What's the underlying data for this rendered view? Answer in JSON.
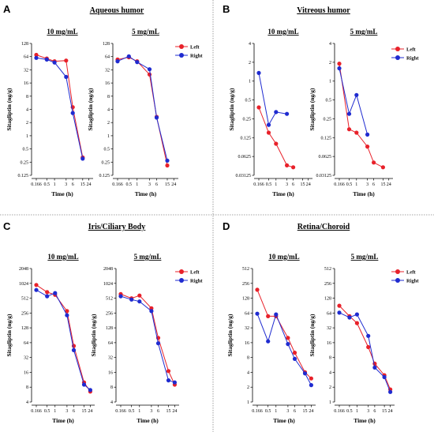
{
  "colors": {
    "left": "#e8212a",
    "right": "#1f2bd0"
  },
  "legend": {
    "left": "Left",
    "right": "Right"
  },
  "x_ticks": [
    "0.166",
    "0.5",
    "1",
    "3",
    "6",
    "15",
    "24"
  ],
  "x_title": "Time (h)",
  "y_title": "Sitagliptin (ng/g)",
  "panels": [
    {
      "letter": "A",
      "title": "Aqueous humor",
      "y_ticks": [
        "0.125",
        "0.25",
        "0.5",
        "1",
        "2",
        "4",
        "8",
        "16",
        "32",
        "64",
        "128"
      ]
    },
    {
      "letter": "B",
      "title": "Vitreous humor",
      "y_ticks": [
        "0.03125",
        "0.0625",
        "0.125",
        "0.25",
        "0.5",
        "1",
        "2",
        "4"
      ]
    },
    {
      "letter": "C",
      "title": "Iris/Ciliary Body",
      "y_ticks": [
        "4",
        "8",
        "16",
        "32",
        "64",
        "128",
        "256",
        "512",
        "1024",
        "2048"
      ]
    },
    {
      "letter": "D",
      "title": "Retina/Choroid",
      "y_ticks": [
        "1",
        "2",
        "4",
        "8",
        "16",
        "32",
        "64",
        "128",
        "256",
        "512"
      ]
    }
  ],
  "chart_data": [
    {
      "type": "line",
      "panel": "A",
      "subtitle": "10 mg/mL",
      "xlabel": "Time (h)",
      "ylabel": "Sitagliptin (ng/g)",
      "x": [
        0.166,
        0.5,
        1,
        3,
        6,
        15,
        24
      ],
      "x_scale": "categorical",
      "y_scale": "log2",
      "ylim": [
        0.125,
        128
      ],
      "series": [
        {
          "name": "Left",
          "values": [
            70,
            58,
            50,
            52,
            4.5,
            0.32
          ],
          "x": [
            0.166,
            0.5,
            1,
            3,
            6,
            15
          ]
        },
        {
          "name": "Right",
          "values": [
            60,
            55,
            47,
            22,
            3.3,
            0.3
          ],
          "x": [
            0.166,
            0.5,
            1,
            3,
            6,
            15
          ]
        }
      ]
    },
    {
      "type": "line",
      "panel": "A",
      "subtitle": "5 mg/mL",
      "xlabel": "Time (h)",
      "ylabel": "Sitagliptin (ng/g)",
      "x": [
        0.166,
        0.5,
        1,
        3,
        6,
        15,
        24
      ],
      "x_scale": "categorical",
      "y_scale": "log2",
      "ylim": [
        0.125,
        128
      ],
      "series": [
        {
          "name": "Left",
          "values": [
            55,
            62,
            50,
            25,
            2.7,
            0.21
          ],
          "x": [
            0.166,
            0.5,
            1,
            3,
            6,
            15
          ]
        },
        {
          "name": "Right",
          "values": [
            50,
            65,
            48,
            33,
            2.6,
            0.27
          ],
          "x": [
            0.166,
            0.5,
            1,
            3,
            6,
            15
          ]
        }
      ]
    },
    {
      "type": "line",
      "panel": "B",
      "subtitle": "10 mg/mL",
      "xlabel": "Time (h)",
      "ylabel": "Sitagliptin (ng/g)",
      "x": [
        0.166,
        0.5,
        1,
        3,
        6,
        15,
        24
      ],
      "x_scale": "categorical",
      "y_scale": "log2",
      "ylim": [
        0.03125,
        4
      ],
      "series": [
        {
          "name": "Left",
          "values": [
            0.38,
            0.15,
            0.1,
            0.045,
            0.042
          ],
          "x": [
            0.166,
            0.5,
            1,
            3,
            6
          ]
        },
        {
          "name": "Right",
          "values": [
            1.35,
            0.2,
            0.32,
            0.3
          ],
          "x": [
            0.166,
            0.5,
            1,
            3
          ]
        }
      ]
    },
    {
      "type": "line",
      "panel": "B",
      "subtitle": "5 mg/mL",
      "xlabel": "Time (h)",
      "ylabel": "Sitagliptin (ng/g)",
      "x": [
        0.166,
        0.5,
        1,
        3,
        6,
        15,
        24
      ],
      "x_scale": "categorical",
      "y_scale": "log2",
      "ylim": [
        0.03125,
        4
      ],
      "series": [
        {
          "name": "Left",
          "values": [
            1.9,
            0.17,
            0.15,
            0.09,
            0.05,
            0.042
          ],
          "x": [
            0.166,
            0.5,
            1,
            3,
            6,
            15
          ]
        },
        {
          "name": "Right",
          "values": [
            1.6,
            0.3,
            0.6,
            0.14
          ],
          "x": [
            0.166,
            0.5,
            1,
            3
          ]
        }
      ]
    },
    {
      "type": "line",
      "panel": "C",
      "subtitle": "10 mg/mL",
      "xlabel": "Time (h)",
      "ylabel": "Sitagliptin (ng/g)",
      "x": [
        0.166,
        0.5,
        1,
        3,
        6,
        15,
        24
      ],
      "x_scale": "categorical",
      "y_scale": "log2",
      "ylim": [
        4,
        2048
      ],
      "series": [
        {
          "name": "Left",
          "values": [
            950,
            680,
            600,
            280,
            55,
            10,
            6.5
          ],
          "x": [
            0.166,
            0.5,
            1,
            3,
            6,
            15,
            24
          ]
        },
        {
          "name": "Right",
          "values": [
            750,
            560,
            650,
            230,
            45,
            9,
            7
          ]
        }
      ]
    },
    {
      "type": "line",
      "panel": "C",
      "subtitle": "5 mg/mL",
      "xlabel": "Time (h)",
      "ylabel": "Sitagliptin (ng/g)",
      "x": [
        0.166,
        0.5,
        1,
        3,
        6,
        15,
        24
      ],
      "x_scale": "categorical",
      "y_scale": "log2",
      "ylim": [
        4,
        2048
      ],
      "series": [
        {
          "name": "Left",
          "values": [
            620,
            510,
            580,
            320,
            80,
            17,
            9
          ]
        },
        {
          "name": "Right",
          "values": [
            560,
            480,
            440,
            280,
            62,
            11,
            10
          ]
        }
      ]
    },
    {
      "type": "line",
      "panel": "D",
      "subtitle": "10 mg/mL",
      "xlabel": "Time (h)",
      "ylabel": "Sitagliptin (ng/g)",
      "x": [
        0.166,
        0.5,
        1,
        3,
        6,
        15,
        24
      ],
      "x_scale": "categorical",
      "y_scale": "log2",
      "ylim": [
        1,
        512
      ],
      "series": [
        {
          "name": "Left",
          "values": [
            190,
            55,
            55,
            20,
            10,
            4,
            3
          ]
        },
        {
          "name": "Right",
          "values": [
            62,
            17,
            60,
            15,
            7.5,
            3.8,
            2.2
          ]
        }
      ]
    },
    {
      "type": "line",
      "panel": "D",
      "subtitle": "5 mg/mL",
      "xlabel": "Time (h)",
      "ylabel": "Sitagliptin (ng/g)",
      "x": [
        0.166,
        0.5,
        1,
        3,
        6,
        15,
        24
      ],
      "x_scale": "categorical",
      "y_scale": "log2",
      "ylim": [
        1,
        512
      ],
      "series": [
        {
          "name": "Left",
          "values": [
            90,
            55,
            40,
            13,
            6,
            3.5,
            1.8
          ]
        },
        {
          "name": "Right",
          "values": [
            65,
            52,
            60,
            22,
            5,
            3.2,
            1.6
          ]
        }
      ]
    }
  ]
}
